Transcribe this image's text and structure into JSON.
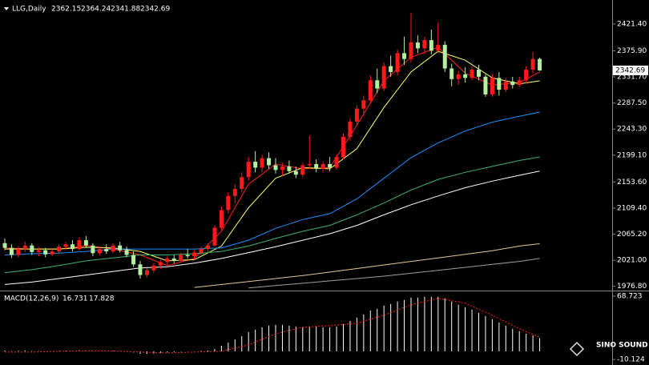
{
  "chart_data": [
    {
      "type": "candlestick",
      "title": "LLG,Daily",
      "up_color": "#ff1a1a",
      "down_color": "#b4f0a0",
      "ylim": [
        1971,
        2462
      ],
      "yticks": [
        {
          "value": 2421.4,
          "label": "2421.40"
        },
        {
          "value": 2375.9,
          "label": "2375.90"
        },
        {
          "value": 2331.7,
          "label": "2331.70"
        },
        {
          "value": 2287.5,
          "label": "2287.50"
        },
        {
          "value": 2243.3,
          "label": "2243.30"
        },
        {
          "value": 2199.1,
          "label": "2199.10"
        },
        {
          "value": 2153.6,
          "label": "2153.60"
        },
        {
          "value": 2109.4,
          "label": "2109.40"
        },
        {
          "value": 2065.2,
          "label": "2065.20"
        },
        {
          "value": 2021,
          "label": "2021.00"
        },
        {
          "value": 1976.8,
          "label": "1976.80"
        }
      ],
      "candles": [
        [
          2050,
          2058,
          2038,
          2042
        ],
        [
          2042,
          2048,
          2025,
          2030
        ],
        [
          2030,
          2045,
          2026,
          2040
        ],
        [
          2040,
          2052,
          2035,
          2046
        ],
        [
          2046,
          2050,
          2030,
          2035
        ],
        [
          2035,
          2044,
          2028,
          2038
        ],
        [
          2038,
          2042,
          2026,
          2031
        ],
        [
          2031,
          2040,
          2028,
          2036
        ],
        [
          2036,
          2048,
          2032,
          2044
        ],
        [
          2044,
          2052,
          2038,
          2048
        ],
        [
          2048,
          2055,
          2036,
          2040
        ],
        [
          2040,
          2060,
          2037,
          2055
        ],
        [
          2055,
          2062,
          2042,
          2046
        ],
        [
          2046,
          2050,
          2028,
          2033
        ],
        [
          2033,
          2044,
          2030,
          2040
        ],
        [
          2040,
          2048,
          2032,
          2036
        ],
        [
          2036,
          2050,
          2033,
          2046
        ],
        [
          2046,
          2052,
          2034,
          2038
        ],
        [
          2038,
          2044,
          2026,
          2030
        ],
        [
          2030,
          2036,
          2010,
          2014
        ],
        [
          2014,
          2020,
          1990,
          1996
        ],
        [
          1996,
          2008,
          1992,
          2004
        ],
        [
          2004,
          2016,
          2000,
          2012
        ],
        [
          2012,
          2022,
          2006,
          2018
        ],
        [
          2018,
          2028,
          2012,
          2024
        ],
        [
          2024,
          2030,
          2016,
          2020
        ],
        [
          2020,
          2034,
          2017,
          2030
        ],
        [
          2030,
          2040,
          2024,
          2028
        ],
        [
          2028,
          2038,
          2022,
          2034
        ],
        [
          2034,
          2044,
          2030,
          2040
        ],
        [
          2040,
          2050,
          2032,
          2046
        ],
        [
          2046,
          2080,
          2044,
          2076
        ],
        [
          2076,
          2112,
          2072,
          2106
        ],
        [
          2106,
          2136,
          2100,
          2130
        ],
        [
          2130,
          2150,
          2118,
          2142
        ],
        [
          2142,
          2170,
          2136,
          2162
        ],
        [
          2162,
          2196,
          2156,
          2188
        ],
        [
          2188,
          2206,
          2170,
          2178
        ],
        [
          2178,
          2200,
          2170,
          2194
        ],
        [
          2194,
          2204,
          2176,
          2182
        ],
        [
          2182,
          2194,
          2168,
          2174
        ],
        [
          2174,
          2186,
          2164,
          2180
        ],
        [
          2180,
          2190,
          2168,
          2172
        ],
        [
          2172,
          2180,
          2160,
          2166
        ],
        [
          2166,
          2186,
          2162,
          2182
        ],
        [
          2182,
          2232,
          2176,
          2184
        ],
        [
          2184,
          2192,
          2170,
          2176
        ],
        [
          2176,
          2188,
          2170,
          2184
        ],
        [
          2184,
          2196,
          2172,
          2178
        ],
        [
          2178,
          2200,
          2174,
          2196
        ],
        [
          2196,
          2236,
          2192,
          2230
        ],
        [
          2230,
          2262,
          2224,
          2256
        ],
        [
          2256,
          2284,
          2248,
          2278
        ],
        [
          2278,
          2300,
          2266,
          2292
        ],
        [
          2292,
          2334,
          2286,
          2326
        ],
        [
          2326,
          2346,
          2304,
          2312
        ],
        [
          2312,
          2356,
          2308,
          2350
        ],
        [
          2350,
          2368,
          2332,
          2340
        ],
        [
          2340,
          2378,
          2334,
          2372
        ],
        [
          2372,
          2400,
          2352,
          2362
        ],
        [
          2362,
          2440,
          2356,
          2390
        ],
        [
          2390,
          2402,
          2372,
          2380
        ],
        [
          2380,
          2400,
          2370,
          2394
        ],
        [
          2394,
          2412,
          2370,
          2376
        ],
        [
          2376,
          2424,
          2372,
          2386
        ],
        [
          2386,
          2392,
          2340,
          2346
        ],
        [
          2346,
          2354,
          2316,
          2328
        ],
        [
          2328,
          2342,
          2318,
          2336
        ],
        [
          2336,
          2348,
          2322,
          2330
        ],
        [
          2330,
          2350,
          2326,
          2344
        ],
        [
          2344,
          2352,
          2326,
          2332
        ],
        [
          2332,
          2336,
          2298,
          2302
        ],
        [
          2302,
          2336,
          2298,
          2330
        ],
        [
          2330,
          2340,
          2300,
          2310
        ],
        [
          2310,
          2330,
          2306,
          2324
        ],
        [
          2324,
          2332,
          2312,
          2318
        ],
        [
          2318,
          2332,
          2314,
          2326
        ],
        [
          2326,
          2350,
          2320,
          2344
        ],
        [
          2344,
          2374,
          2338,
          2362
        ],
        [
          2362.15,
          2364.24,
          2341.88,
          2342.69
        ]
      ],
      "ma_x": [
        0,
        4,
        8,
        12,
        16,
        20,
        24,
        28,
        32,
        36,
        40,
        44,
        48,
        52,
        56,
        60,
        64,
        68,
        72,
        76,
        79
      ],
      "lines": [
        {
          "color": "#ff2020",
          "values": [
            2042,
            2040,
            2040,
            2046,
            2040,
            2030,
            2012,
            2024,
            2070,
            2150,
            2184,
            2176,
            2178,
            2250,
            2325,
            2365,
            2382,
            2338,
            2318,
            2322,
            2340
          ]
        },
        {
          "color": "#ffff66",
          "values": [
            2040,
            2040,
            2040,
            2043,
            2042,
            2036,
            2020,
            2022,
            2045,
            2110,
            2160,
            2178,
            2176,
            2210,
            2280,
            2340,
            2375,
            2360,
            2330,
            2320,
            2325
          ]
        },
        {
          "color": "#1e90ff",
          "values": [
            2030,
            2032,
            2033,
            2036,
            2040,
            2040,
            2040,
            2040,
            2042,
            2055,
            2075,
            2090,
            2100,
            2125,
            2160,
            2195,
            2220,
            2240,
            2255,
            2265,
            2272
          ]
        },
        {
          "color": "#3cb371",
          "values": [
            2000,
            2005,
            2012,
            2020,
            2025,
            2030,
            2030,
            2032,
            2036,
            2045,
            2058,
            2070,
            2080,
            2098,
            2118,
            2140,
            2158,
            2170,
            2180,
            2190,
            2196
          ]
        },
        {
          "color": "#ffffff",
          "values": [
            1980,
            1984,
            1990,
            1996,
            2002,
            2008,
            2010,
            2016,
            2024,
            2034,
            2044,
            2055,
            2066,
            2080,
            2098,
            2115,
            2130,
            2144,
            2155,
            2165,
            2172
          ]
        },
        {
          "color": "#e6c896",
          "values": [
            null,
            null,
            null,
            null,
            null,
            null,
            null,
            1975,
            1980,
            1985,
            1990,
            1995,
            2001,
            2007,
            2013,
            2019,
            2025,
            2031,
            2037,
            2045,
            2049
          ]
        },
        {
          "color": "#a0a0a0",
          "values": [
            null,
            null,
            null,
            null,
            null,
            null,
            null,
            null,
            null,
            1974,
            1978,
            1982,
            1986,
            1990,
            1994,
            1999,
            2004,
            2009,
            2014,
            2019,
            2024
          ]
        }
      ]
    },
    {
      "type": "macd",
      "title": "MACD(12,26,9)",
      "ylim": [
        -17,
        72.7
      ],
      "yticks": [
        68.723,
        -10.124
      ],
      "hist_color": "#ffffff",
      "signal_color": "#ff2020",
      "histogram": [
        1,
        0.5,
        0.8,
        1.2,
        0.6,
        0.4,
        -0.2,
        0,
        0.5,
        1,
        0.8,
        1.5,
        1.2,
        0.4,
        0.3,
        0.2,
        0.6,
        0.3,
        -0.5,
        -1.5,
        -3,
        -3.2,
        -2.8,
        -2,
        -1.5,
        -1,
        -0.5,
        -0.2,
        0.2,
        0.6,
        1,
        3,
        7,
        11,
        15,
        19,
        24,
        27,
        30,
        32,
        33,
        33,
        32,
        31,
        30,
        31,
        31,
        30,
        30,
        31,
        34,
        38,
        42,
        46,
        51,
        53,
        57,
        59,
        62,
        64,
        67,
        67,
        68,
        68,
        68,
        66,
        62,
        58,
        55,
        52,
        48,
        44,
        40,
        36,
        32,
        28,
        25,
        22,
        20,
        16.731
      ],
      "signal": {
        "x": [
          0,
          4,
          8,
          12,
          16,
          20,
          24,
          28,
          32,
          36,
          40,
          44,
          48,
          52,
          56,
          60,
          64,
          68,
          72,
          76,
          79
        ],
        "values": [
          -1,
          -1,
          0,
          0.5,
          0.5,
          -1,
          -2,
          -1,
          0,
          8,
          22,
          30,
          32,
          35,
          45,
          58,
          66,
          60,
          45,
          28,
          17.828
        ]
      }
    }
  ],
  "watermark": "SINO SOUND"
}
